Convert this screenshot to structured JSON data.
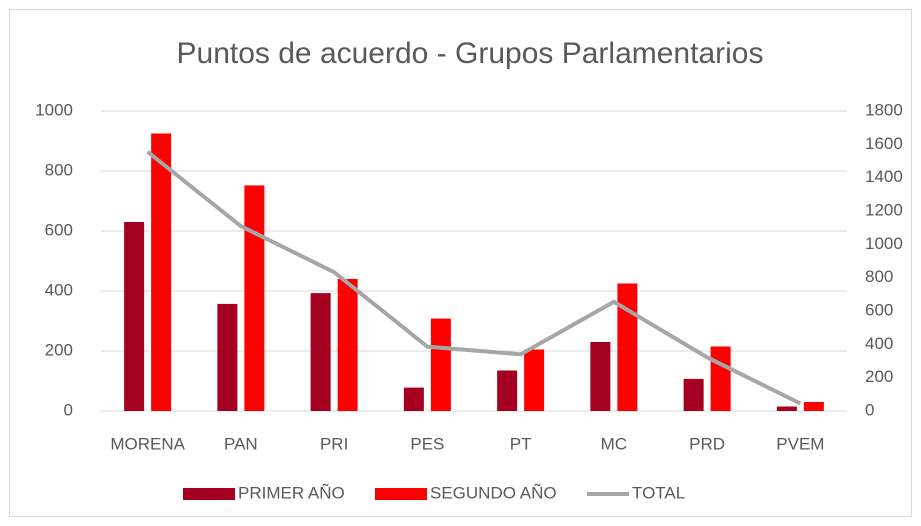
{
  "chart_data": {
    "type": "bar_line",
    "title": "Puntos de acuerdo - Grupos Parlamentarios",
    "categories": [
      "MORENA",
      "PAN",
      "PRI",
      "PES",
      "PT",
      "MC",
      "PRD",
      "PVEM"
    ],
    "series": [
      {
        "name": "PRIMER AÑO",
        "color": "#a50021",
        "type": "bar",
        "values": [
          630,
          357,
          393,
          78,
          135,
          230,
          107,
          15
        ]
      },
      {
        "name": "SEGUNDO AÑO",
        "color": "#ff0000",
        "type": "bar",
        "values": [
          925,
          752,
          440,
          308,
          205,
          425,
          215,
          30
        ]
      },
      {
        "name": "TOTAL",
        "color": "#a6a6a6",
        "type": "line",
        "axis": "y2",
        "values": [
          1555,
          1109,
          833,
          386,
          340,
          655,
          322,
          45
        ]
      }
    ],
    "ylim": [
      0,
      1000
    ],
    "yticks": [
      0,
      200,
      400,
      600,
      800,
      1000
    ],
    "y2lim": [
      0,
      1800
    ],
    "y2ticks": [
      0,
      200,
      400,
      600,
      800,
      1000,
      1200,
      1400,
      1600,
      1800
    ],
    "grid": true,
    "legend": "bottom"
  }
}
